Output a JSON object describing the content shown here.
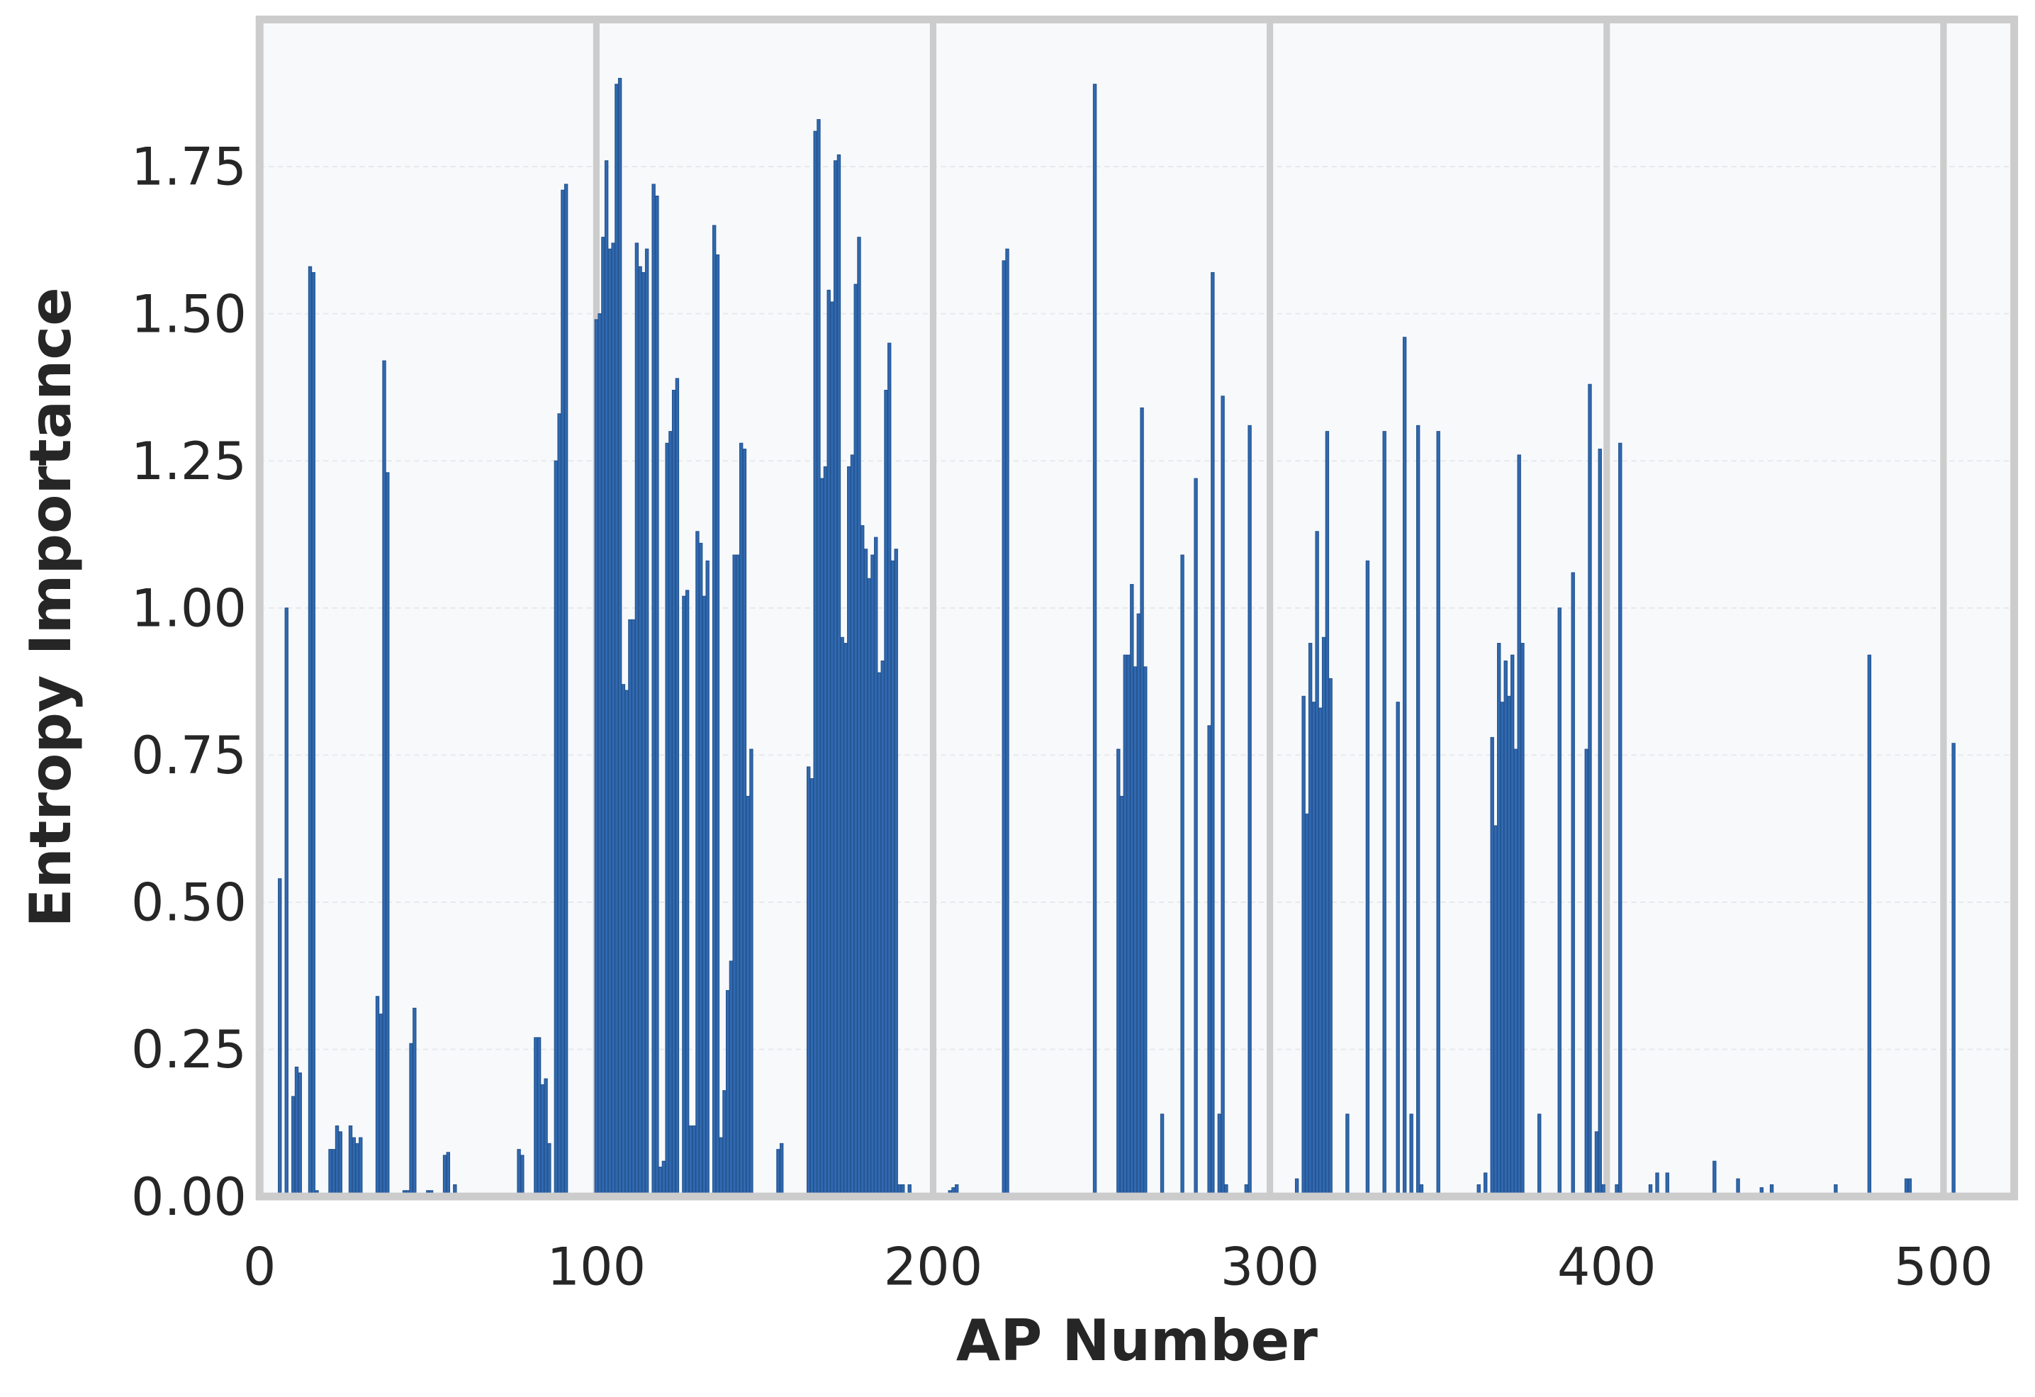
{
  "chart_data": {
    "type": "bar",
    "xlabel": "AP Number",
    "ylabel": "Entropy Importance",
    "color": "#3069b0",
    "edgecolor": "#24528c",
    "grid": true,
    "xlim": [
      0,
      521
    ],
    "ylim": [
      0,
      2.0
    ],
    "xticks": [
      0,
      100,
      200,
      300,
      400,
      500
    ],
    "yticks": [
      {
        "value": 0,
        "label": "0.00"
      },
      {
        "value": 0.25,
        "label": "0.25"
      },
      {
        "value": 0.5,
        "label": "0.50"
      },
      {
        "value": 0.75,
        "label": "0.75"
      },
      {
        "value": 1.0,
        "label": "1.00"
      },
      {
        "value": 1.25,
        "label": "1.25"
      },
      {
        "value": 1.5,
        "label": "1.50"
      },
      {
        "value": 1.75,
        "label": "1.75"
      }
    ],
    "x": [
      6,
      8,
      10,
      11,
      12,
      15,
      16,
      17,
      21,
      22,
      23,
      24,
      27,
      28,
      29,
      30,
      35,
      36,
      37,
      38,
      43,
      44,
      45,
      46,
      50,
      51,
      55,
      56,
      58,
      77,
      78,
      82,
      83,
      84,
      85,
      86,
      88,
      89,
      90,
      91,
      100,
      101,
      102,
      103,
      104,
      105,
      106,
      107,
      108,
      109,
      110,
      111,
      112,
      113,
      114,
      115,
      117,
      118,
      119,
      120,
      121,
      122,
      123,
      124,
      126,
      127,
      128,
      129,
      130,
      131,
      132,
      133,
      135,
      136,
      137,
      138,
      139,
      140,
      141,
      142,
      143,
      144,
      145,
      146,
      154,
      155,
      163,
      164,
      165,
      166,
      167,
      168,
      169,
      170,
      171,
      172,
      173,
      174,
      175,
      176,
      177,
      178,
      179,
      180,
      181,
      182,
      183,
      184,
      185,
      186,
      187,
      188,
      189,
      190,
      191,
      193,
      205,
      206,
      207,
      221,
      222,
      248,
      255,
      256,
      257,
      258,
      259,
      260,
      261,
      262,
      263,
      268,
      274,
      278,
      282,
      283,
      285,
      286,
      287,
      293,
      294,
      308,
      310,
      311,
      312,
      313,
      314,
      315,
      316,
      317,
      318,
      323,
      329,
      334,
      338,
      340,
      342,
      344,
      345,
      349,
      350,
      362,
      364,
      366,
      367,
      368,
      369,
      370,
      371,
      372,
      373,
      374,
      375,
      380,
      386,
      390,
      394,
      395,
      397,
      398,
      399,
      403,
      404,
      413,
      415,
      418,
      432,
      439,
      446,
      449,
      468,
      478,
      489,
      490,
      503
    ],
    "values": [
      0.54,
      1.0,
      0.17,
      0.22,
      0.21,
      1.58,
      1.57,
      0.01,
      0.08,
      0.08,
      0.12,
      0.11,
      0.12,
      0.1,
      0.09,
      0.1,
      0.34,
      0.31,
      1.42,
      1.23,
      0.01,
      0.01,
      0.26,
      0.32,
      0.01,
      0.01,
      0.07,
      0.075,
      0.02,
      0.08,
      0.07,
      0.27,
      0.27,
      0.19,
      0.2,
      0.09,
      1.25,
      1.33,
      1.71,
      1.72,
      1.49,
      1.5,
      1.63,
      1.76,
      1.61,
      1.62,
      1.89,
      1.9,
      0.87,
      0.86,
      0.98,
      0.98,
      1.62,
      1.58,
      1.57,
      1.61,
      1.72,
      1.7,
      0.05,
      0.06,
      1.28,
      1.3,
      1.37,
      1.39,
      1.02,
      1.03,
      0.12,
      0.12,
      1.13,
      1.11,
      1.02,
      1.08,
      1.65,
      1.6,
      0.1,
      0.18,
      0.35,
      0.4,
      1.09,
      1.09,
      1.28,
      1.27,
      0.68,
      0.76,
      0.08,
      0.09,
      0.73,
      0.71,
      1.81,
      1.83,
      1.22,
      1.24,
      1.54,
      1.52,
      1.76,
      1.77,
      0.95,
      0.94,
      1.24,
      1.26,
      1.55,
      1.63,
      1.14,
      1.1,
      1.05,
      1.09,
      1.12,
      0.89,
      0.91,
      1.37,
      1.45,
      1.08,
      1.1,
      0.02,
      0.02,
      0.02,
      0.01,
      0.015,
      0.02,
      1.59,
      1.61,
      1.89,
      0.76,
      0.68,
      0.92,
      0.92,
      1.04,
      0.9,
      0.99,
      1.34,
      0.9,
      0.14,
      1.09,
      1.22,
      0.8,
      1.57,
      0.14,
      1.36,
      0.02,
      0.02,
      1.31,
      0.03,
      0.85,
      0.65,
      0.94,
      0.84,
      1.13,
      0.83,
      0.95,
      1.3,
      0.88,
      0.14,
      1.08,
      1.3,
      0.84,
      1.46,
      0.14,
      1.31,
      0.02,
      0.005,
      1.3,
      0.02,
      0.04,
      0.78,
      0.63,
      0.94,
      0.84,
      0.91,
      0.85,
      0.92,
      0.76,
      1.26,
      0.94,
      0.14,
      1.0,
      1.06,
      0.76,
      1.38,
      0.11,
      1.27,
      0.02,
      0.02,
      1.28,
      0.02,
      0.04,
      0.04,
      0.06,
      0.03,
      0.015,
      0.02,
      0.02,
      0.92,
      0.03,
      0.03,
      0.77
    ]
  }
}
